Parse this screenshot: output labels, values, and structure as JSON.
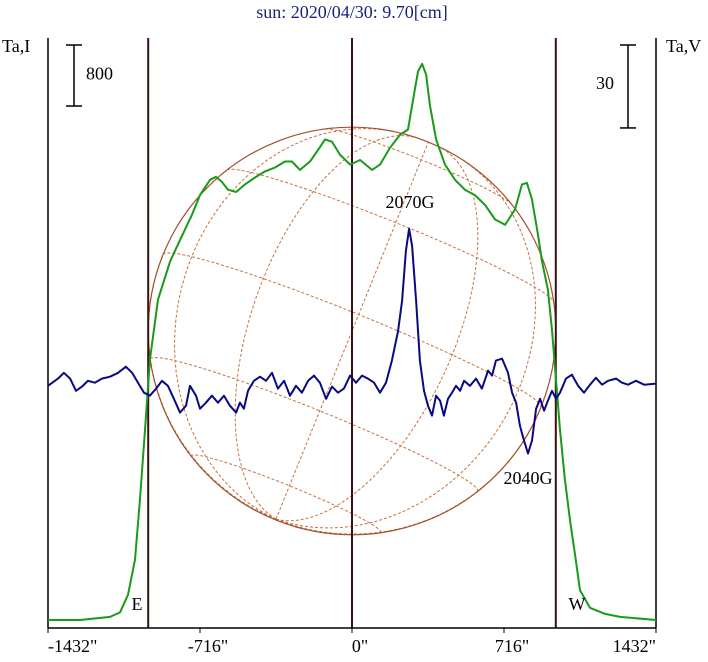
{
  "chart_data": {
    "type": "line",
    "title": "sun: 2020/04/30: 9.70[cm]",
    "y_label": "Ta,I",
    "y2_label": "Ta,V",
    "xlim": [
      -1432,
      1432
    ],
    "xticks": [
      {
        "value": -1432,
        "label": "-1432\""
      },
      {
        "value": -716,
        "label": "-716\""
      },
      {
        "value": 0,
        "label": "0\""
      },
      {
        "value": 716,
        "label": "716\""
      },
      {
        "value": 1432,
        "label": "1432\""
      }
    ],
    "ylim": [
      -105,
      7760
    ],
    "y2lim": [
      -88,
      129
    ],
    "solar_radius": 960,
    "limb_labels": [
      "E",
      "W"
    ],
    "annotations": [
      "2070G",
      "2040G"
    ],
    "scale_bars": [
      {
        "value": 800,
        "axis": "y"
      },
      {
        "value": 30,
        "axis": "y2"
      }
    ],
    "series": [
      {
        "color": "#1a9a1a",
        "axis": "y",
        "x": [
          -1432,
          -1281,
          -1140,
          -1093,
          -1055,
          -1022,
          -999,
          -975,
          -952,
          -914,
          -857,
          -810,
          -754,
          -716,
          -669,
          -641,
          -612,
          -584,
          -546,
          -504,
          -457,
          -410,
          -363,
          -316,
          -283,
          -245,
          -198,
          -160,
          -127,
          -94,
          -57,
          -9,
          38,
          94,
          132,
          179,
          226,
          264,
          292,
          311,
          330,
          349,
          367,
          396,
          438,
          485,
          532,
          579,
          627,
          674,
          721,
          768,
          801,
          824,
          848,
          876,
          895,
          923,
          942,
          961,
          980,
          1003,
          1027,
          1051,
          1074,
          1121,
          1192,
          1263,
          1432
        ],
        "values": [
          0,
          0,
          40,
          100,
          330,
          790,
          1570,
          2490,
          3410,
          4200,
          4700,
          4980,
          5310,
          5570,
          5770,
          5810,
          5740,
          5640,
          5610,
          5710,
          5800,
          5880,
          5930,
          6010,
          6010,
          5900,
          6010,
          6160,
          6300,
          6270,
          6100,
          5970,
          6030,
          5900,
          5970,
          6190,
          6360,
          6430,
          6890,
          7190,
          7290,
          7150,
          6750,
          6300,
          5970,
          5770,
          5640,
          5570,
          5440,
          5250,
          5180,
          5380,
          5710,
          5730,
          5510,
          5050,
          4700,
          4330,
          3800,
          3150,
          2490,
          1840,
          1310,
          850,
          390,
          160,
          80,
          40,
          0
        ]
      },
      {
        "color": "#0a0a80",
        "axis": "y2",
        "x": [
          -1432,
          -1385,
          -1357,
          -1328,
          -1300,
          -1272,
          -1244,
          -1211,
          -1178,
          -1140,
          -1102,
          -1065,
          -1036,
          -1008,
          -980,
          -952,
          -923,
          -895,
          -867,
          -839,
          -810,
          -782,
          -763,
          -735,
          -716,
          -688,
          -660,
          -631,
          -603,
          -575,
          -546,
          -528,
          -509,
          -490,
          -462,
          -433,
          -405,
          -377,
          -349,
          -320,
          -292,
          -264,
          -236,
          -207,
          -179,
          -151,
          -122,
          -94,
          -66,
          -38,
          -9,
          19,
          47,
          75,
          104,
          132,
          160,
          188,
          217,
          236,
          254,
          269,
          283,
          302,
          320,
          339,
          358,
          377,
          396,
          415,
          433,
          452,
          471,
          490,
          509,
          528,
          556,
          584,
          612,
          641,
          660,
          678,
          707,
          735,
          754,
          773,
          791,
          810,
          829,
          848,
          867,
          886,
          905,
          923,
          942,
          961,
          980,
          1008,
          1036,
          1065,
          1093,
          1121,
          1149,
          1178,
          1206,
          1244,
          1272,
          1300,
          1338,
          1376,
          1432
        ],
        "values": [
          -0.4,
          2.2,
          4.3,
          2.2,
          -2.2,
          -0.7,
          1.4,
          0.7,
          2.2,
          2.9,
          4.3,
          6.5,
          4.3,
          0.7,
          -2.9,
          -4.0,
          -1.4,
          1.4,
          -0.4,
          -5.1,
          -10.1,
          -7.6,
          -0.4,
          -4.0,
          -8.7,
          -6.5,
          -4.0,
          -6.5,
          -4.0,
          -7.6,
          -10.1,
          -6.5,
          -8.7,
          -2.2,
          1.4,
          2.9,
          1.4,
          4.3,
          -1.4,
          1.4,
          -4.0,
          -0.4,
          -2.9,
          1.4,
          3.3,
          0.7,
          -5.1,
          -0.7,
          -2.9,
          -1.4,
          3.3,
          0.7,
          3.3,
          2.2,
          0.7,
          -2.9,
          0.7,
          8.7,
          19.5,
          30.4,
          48.4,
          56.4,
          50.2,
          30.4,
          8.7,
          -2.2,
          -7.6,
          -11.2,
          -4.0,
          -5.8,
          -11.2,
          -5.1,
          -2.9,
          -0.4,
          -2.2,
          1.4,
          -0.4,
          2.2,
          -1.4,
          5.1,
          3.3,
          8.7,
          9.4,
          4.3,
          -2.9,
          -6.5,
          -14.8,
          -20.2,
          -24.9,
          -20.2,
          -8.7,
          -5.1,
          -9.4,
          -5.8,
          -2.2,
          -5.1,
          -2.9,
          2.2,
          3.6,
          -0.4,
          -2.9,
          0,
          2.5,
          0,
          1.4,
          2.2,
          0.7,
          0,
          1.4,
          0,
          0.4
        ]
      }
    ]
  }
}
